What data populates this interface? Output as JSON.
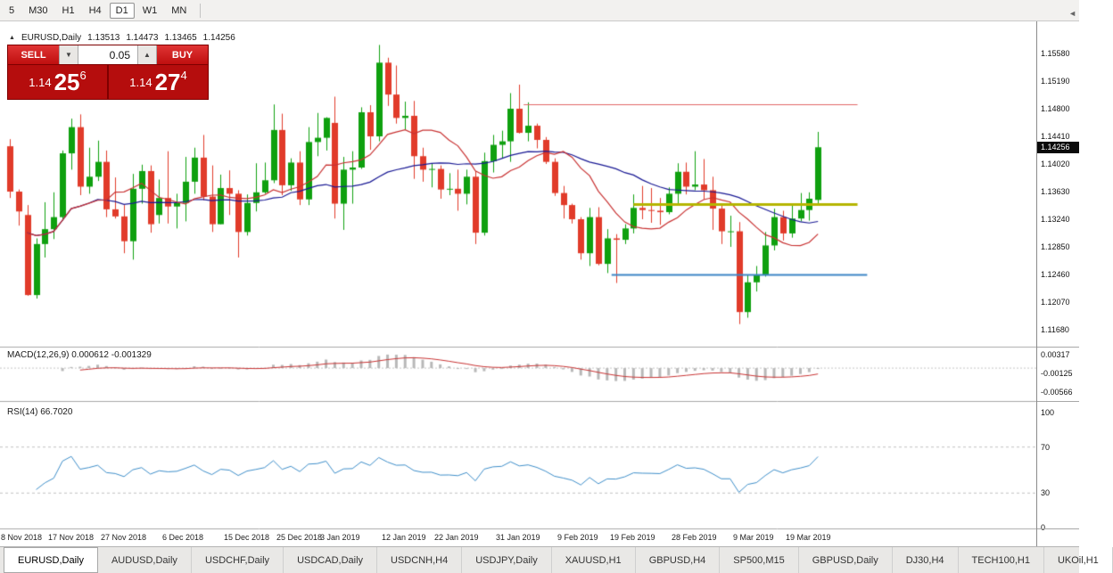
{
  "toolbar": {
    "timeframes": [
      "5",
      "M30",
      "H1",
      "H4",
      "D1",
      "W1",
      "MN"
    ],
    "selected": "D1"
  },
  "chart_header": {
    "marker": "▲",
    "symbol": "EURUSD,Daily",
    "open": "1.13513",
    "high": "1.14473",
    "low": "1.13465",
    "close": "1.14256"
  },
  "trade_panel": {
    "sell_label": "SELL",
    "buy_label": "BUY",
    "volume": "0.05",
    "down_icon": "▼",
    "up_icon": "▲",
    "sell_price": {
      "prefix": "1.14",
      "big": "25",
      "sup": "6"
    },
    "buy_price": {
      "prefix": "1.14",
      "big": "27",
      "sup": "4"
    }
  },
  "price_scale": {
    "labels": [
      "1.15580",
      "1.15190",
      "1.14800",
      "1.14410",
      "1.14020",
      "1.13630",
      "1.13240",
      "1.12850",
      "1.12460",
      "1.12070",
      "1.11680"
    ],
    "current": "1.14256"
  },
  "macd_panel": {
    "label": "MACD(12,26,9) 0.000612 -0.001329",
    "scale": [
      "0.00317",
      "-0.00125",
      "-0.00566"
    ]
  },
  "rsi_panel": {
    "label": "RSI(14) 66.7020",
    "scale": [
      "100",
      "70",
      "30",
      "0"
    ]
  },
  "date_axis": {
    "labels": [
      {
        "text": "8 Nov 2018",
        "index": 0
      },
      {
        "text": "17 Nov 2018",
        "index": 7
      },
      {
        "text": "27 Nov 2018",
        "index": 13
      },
      {
        "text": "6 Dec 2018",
        "index": 20
      },
      {
        "text": "15 Dec 2018",
        "index": 27
      },
      {
        "text": "25 Dec 2018",
        "index": 33
      },
      {
        "text": "3 Jan 2019",
        "index": 38
      },
      {
        "text": "12 Jan 2019",
        "index": 45
      },
      {
        "text": "22 Jan 2019",
        "index": 51
      },
      {
        "text": "31 Jan 2019",
        "index": 58
      },
      {
        "text": "9 Feb 2019",
        "index": 65
      },
      {
        "text": "19 Feb 2019",
        "index": 71
      },
      {
        "text": "28 Feb 2019",
        "index": 78
      },
      {
        "text": "9 Mar 2019",
        "index": 85
      },
      {
        "text": "19 Mar 2019",
        "index": 91
      }
    ]
  },
  "tabs_bar": {
    "scroll_left_icon": "◄",
    "tabs": [
      {
        "label": "EURUSD,Daily",
        "active": true
      },
      {
        "label": "AUDUSD,Daily",
        "active": false
      },
      {
        "label": "USDCHF,Daily",
        "active": false
      },
      {
        "label": "USDCAD,Daily",
        "active": false
      },
      {
        "label": "USDCNH,H4",
        "active": false
      },
      {
        "label": "USDJPY,Daily",
        "active": false
      },
      {
        "label": "XAUUSD,H1",
        "active": false
      },
      {
        "label": "GBPUSD,H4",
        "active": false
      },
      {
        "label": "SP500,M15",
        "active": false
      },
      {
        "label": "GBPUSD,Daily",
        "active": false
      },
      {
        "label": "DJ30,H4",
        "active": false
      },
      {
        "label": "TECH100,H1",
        "active": false
      },
      {
        "label": "UKOil,H1",
        "active": false
      }
    ]
  },
  "chart_data": {
    "type": "candlestick",
    "symbol": "EURUSD",
    "timeframe": "Daily",
    "current": {
      "open": 1.13513,
      "high": 1.14473,
      "low": 1.13465,
      "close": 1.14256
    },
    "up_color": "#0fa00f",
    "down_color": "#e13b2a",
    "ma_fast": {
      "period": 10,
      "color": "#c83232"
    },
    "ma_slow": {
      "period": 30,
      "color": "#191994"
    },
    "macd": {
      "fast": 12,
      "slow": 26,
      "signal": 9,
      "main": 0.000612,
      "signal_value": -0.001329,
      "histogram_color": "#b8b8b8",
      "signal_color": "#c83232"
    },
    "rsi": {
      "period": 14,
      "value": 66.702,
      "color": "#3e8ec9",
      "levels": [
        70,
        30
      ]
    },
    "hlines": [
      {
        "price": 1.1486,
        "from": 58.5,
        "to": 96.5,
        "color": "#e06666",
        "width": 1
      },
      {
        "price": 1.1345,
        "from": 71.0,
        "to": 96.5,
        "color": "#b5b500",
        "width": 3
      },
      {
        "price": 1.1246,
        "from": 68.5,
        "to": 97.6,
        "color": "#3d85c6",
        "width": 2
      }
    ],
    "candles": [
      [
        1.1427,
        1.1437,
        1.1354,
        1.1363
      ],
      [
        1.1363,
        1.1366,
        1.1315,
        1.1335
      ],
      [
        1.133,
        1.1344,
        1.1216,
        1.1217
      ],
      [
        1.1217,
        1.1297,
        1.1212,
        1.1289
      ],
      [
        1.1289,
        1.1348,
        1.127,
        1.131
      ],
      [
        1.131,
        1.1362,
        1.1296,
        1.1327
      ],
      [
        1.1327,
        1.1421,
        1.1322,
        1.1417
      ],
      [
        1.1417,
        1.1466,
        1.1394,
        1.1454
      ],
      [
        1.1454,
        1.1472,
        1.1358,
        1.137
      ],
      [
        1.137,
        1.1425,
        1.136,
        1.1384
      ],
      [
        1.1384,
        1.1435,
        1.1378,
        1.1405
      ],
      [
        1.1405,
        1.1421,
        1.1327,
        1.1338
      ],
      [
        1.1338,
        1.1383,
        1.1325,
        1.1328
      ],
      [
        1.1328,
        1.1344,
        1.1276,
        1.1293
      ],
      [
        1.1293,
        1.1388,
        1.1267,
        1.1367
      ],
      [
        1.1367,
        1.1401,
        1.1346,
        1.1392
      ],
      [
        1.1392,
        1.14,
        1.1305,
        1.1317
      ],
      [
        1.133,
        1.138,
        1.1318,
        1.1354
      ],
      [
        1.1354,
        1.142,
        1.1318,
        1.1342
      ],
      [
        1.1342,
        1.136,
        1.1311,
        1.1347
      ],
      [
        1.1347,
        1.1412,
        1.1321,
        1.1377
      ],
      [
        1.1377,
        1.1425,
        1.136,
        1.1411
      ],
      [
        1.1411,
        1.1443,
        1.1351,
        1.1356
      ],
      [
        1.1356,
        1.14,
        1.1306,
        1.1317
      ],
      [
        1.1317,
        1.1387,
        1.1317,
        1.1368
      ],
      [
        1.1368,
        1.1393,
        1.133,
        1.136
      ],
      [
        1.136,
        1.1365,
        1.127,
        1.1306
      ],
      [
        1.1306,
        1.1359,
        1.1301,
        1.1347
      ],
      [
        1.1347,
        1.1403,
        1.1335,
        1.1362
      ],
      [
        1.1362,
        1.1404,
        1.136,
        1.1379
      ],
      [
        1.1379,
        1.1486,
        1.1375,
        1.145
      ],
      [
        1.145,
        1.1473,
        1.1358,
        1.1372
      ],
      [
        1.1372,
        1.141,
        1.1364,
        1.1404
      ],
      [
        1.1404,
        1.142,
        1.1344,
        1.1352
      ],
      [
        1.1352,
        1.1454,
        1.1344,
        1.1433
      ],
      [
        1.1433,
        1.1474,
        1.1413,
        1.1439
      ],
      [
        1.1439,
        1.1468,
        1.1421,
        1.1467
      ],
      [
        1.146,
        1.1497,
        1.1325,
        1.1346
      ],
      [
        1.1346,
        1.1412,
        1.1309,
        1.1394
      ],
      [
        1.1394,
        1.142,
        1.1346,
        1.1397
      ],
      [
        1.1397,
        1.1482,
        1.1395,
        1.1475
      ],
      [
        1.1475,
        1.1485,
        1.1422,
        1.1441
      ],
      [
        1.1441,
        1.157,
        1.1434,
        1.1545
      ],
      [
        1.1545,
        1.1552,
        1.1484,
        1.15
      ],
      [
        1.15,
        1.1541,
        1.1459,
        1.1467
      ],
      [
        1.1467,
        1.149,
        1.145,
        1.147
      ],
      [
        1.147,
        1.1491,
        1.1381,
        1.1413
      ],
      [
        1.1413,
        1.1425,
        1.1377,
        1.1394
      ],
      [
        1.1394,
        1.1402,
        1.1369,
        1.1395
      ],
      [
        1.1395,
        1.14,
        1.1353,
        1.1366
      ],
      [
        1.1366,
        1.1389,
        1.1358,
        1.1367
      ],
      [
        1.1367,
        1.1394,
        1.1336,
        1.136
      ],
      [
        1.136,
        1.1394,
        1.1345,
        1.1384
      ],
      [
        1.1384,
        1.1392,
        1.1289,
        1.1305
      ],
      [
        1.1305,
        1.1418,
        1.1301,
        1.1406
      ],
      [
        1.1406,
        1.1443,
        1.139,
        1.1429
      ],
      [
        1.1429,
        1.1449,
        1.141,
        1.1434
      ],
      [
        1.1434,
        1.1502,
        1.1405,
        1.148
      ],
      [
        1.148,
        1.1514,
        1.1445,
        1.1446
      ],
      [
        1.1446,
        1.1489,
        1.1434,
        1.1456
      ],
      [
        1.1456,
        1.1459,
        1.1424,
        1.1436
      ],
      [
        1.1436,
        1.144,
        1.1402,
        1.1405
      ],
      [
        1.1405,
        1.141,
        1.1357,
        1.1361
      ],
      [
        1.1361,
        1.1371,
        1.1325,
        1.1344
      ],
      [
        1.1344,
        1.1346,
        1.1318,
        1.1324
      ],
      [
        1.1324,
        1.1327,
        1.1267,
        1.1276
      ],
      [
        1.1276,
        1.134,
        1.1258,
        1.1327
      ],
      [
        1.1327,
        1.1341,
        1.1259,
        1.1261
      ],
      [
        1.1261,
        1.131,
        1.1248,
        1.1297
      ],
      [
        1.1297,
        1.1303,
        1.1234,
        1.1295
      ],
      [
        1.1295,
        1.1317,
        1.1289,
        1.1311
      ],
      [
        1.1311,
        1.1359,
        1.1304,
        1.134
      ],
      [
        1.134,
        1.1371,
        1.1324,
        1.1337
      ],
      [
        1.1337,
        1.1368,
        1.1319,
        1.1336
      ],
      [
        1.1336,
        1.1354,
        1.1316,
        1.1334
      ],
      [
        1.1334,
        1.1369,
        1.1331,
        1.136
      ],
      [
        1.136,
        1.1403,
        1.1345,
        1.1391
      ],
      [
        1.1391,
        1.1404,
        1.1359,
        1.137
      ],
      [
        1.137,
        1.142,
        1.1365,
        1.1373
      ],
      [
        1.1373,
        1.1409,
        1.1352,
        1.1365
      ],
      [
        1.1365,
        1.1384,
        1.1309,
        1.1339
      ],
      [
        1.1339,
        1.1344,
        1.1289,
        1.1307
      ],
      [
        1.1307,
        1.1329,
        1.1285,
        1.1307
      ],
      [
        1.1307,
        1.132,
        1.1176,
        1.1193
      ],
      [
        1.1193,
        1.1246,
        1.1185,
        1.1235
      ],
      [
        1.1235,
        1.1258,
        1.1222,
        1.1245
      ],
      [
        1.1245,
        1.1306,
        1.1243,
        1.1287
      ],
      [
        1.1287,
        1.1339,
        1.128,
        1.1327
      ],
      [
        1.1327,
        1.1336,
        1.1294,
        1.1304
      ],
      [
        1.1304,
        1.1345,
        1.1298,
        1.1325
      ],
      [
        1.1325,
        1.1361,
        1.1321,
        1.1337
      ],
      [
        1.1337,
        1.1362,
        1.1322,
        1.1353
      ],
      [
        1.13513,
        1.14473,
        1.13465,
        1.14256
      ]
    ]
  }
}
